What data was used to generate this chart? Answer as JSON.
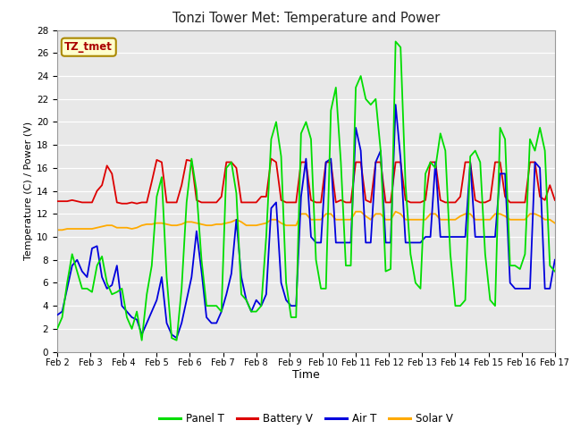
{
  "title": "Tonzi Tower Met: Temperature and Power",
  "xlabel": "Time",
  "ylabel": "Temperature (C) / Power (V)",
  "watermark": "TZ_tmet",
  "ylim": [
    0,
    28
  ],
  "yticks": [
    0,
    2,
    4,
    6,
    8,
    10,
    12,
    14,
    16,
    18,
    20,
    22,
    24,
    26,
    28
  ],
  "xtick_labels": [
    "Feb 2",
    "Feb 3",
    "Feb 4",
    "Feb 5",
    "Feb 6",
    "Feb 7",
    "Feb 8",
    "Feb 9",
    "Feb 10",
    "Feb 11",
    "Feb 12",
    "Feb 13",
    "Feb 14",
    "Feb 15",
    "Feb 16",
    "Feb 17"
  ],
  "legend": [
    {
      "label": "Panel T",
      "color": "#00dd00"
    },
    {
      "label": "Battery V",
      "color": "#dd0000"
    },
    {
      "label": "Air T",
      "color": "#0000dd"
    },
    {
      "label": "Solar V",
      "color": "#ffaa00"
    }
  ],
  "fig_bg_color": "#ffffff",
  "plot_bg_color": "#e8e8e8",
  "grid_color": "#ffffff",
  "panel_t": [
    2.0,
    3.0,
    6.0,
    8.5,
    7.0,
    5.5,
    5.5,
    5.2,
    7.5,
    8.3,
    6.0,
    5.0,
    5.2,
    5.5,
    3.0,
    2.0,
    3.5,
    1.0,
    5.0,
    7.5,
    13.5,
    15.2,
    6.5,
    1.2,
    1.0,
    5.5,
    13.0,
    16.8,
    14.0,
    8.0,
    4.0,
    4.0,
    4.0,
    3.5,
    16.0,
    16.5,
    13.8,
    5.0,
    4.5,
    3.5,
    3.5,
    4.0,
    10.0,
    18.5,
    20.0,
    17.0,
    6.0,
    3.0,
    3.0,
    19.0,
    20.0,
    18.5,
    8.0,
    5.5,
    5.5,
    21.0,
    23.0,
    16.5,
    7.5,
    7.5,
    23.0,
    24.0,
    22.0,
    21.5,
    22.0,
    17.5,
    7.0,
    7.2,
    27.0,
    26.5,
    14.5,
    8.5,
    6.0,
    5.5,
    15.5,
    16.5,
    16.0,
    19.0,
    17.5,
    8.5,
    4.0,
    4.0,
    4.5,
    17.0,
    17.5,
    16.5,
    8.5,
    4.5,
    4.0,
    19.5,
    18.5,
    7.5,
    7.5,
    7.2,
    8.5,
    18.5,
    17.5,
    19.5,
    17.5,
    7.5,
    7.0
  ],
  "battery_v": [
    13.1,
    13.1,
    13.1,
    13.2,
    13.1,
    13.0,
    13.0,
    13.0,
    14.0,
    14.5,
    16.2,
    15.5,
    13.0,
    12.9,
    12.9,
    13.0,
    12.9,
    13.0,
    13.0,
    14.8,
    16.7,
    16.5,
    13.0,
    13.0,
    13.0,
    14.5,
    16.7,
    16.6,
    13.2,
    13.0,
    13.0,
    13.0,
    13.0,
    13.5,
    16.5,
    16.5,
    16.0,
    13.0,
    13.0,
    13.0,
    13.0,
    13.5,
    13.5,
    16.8,
    16.5,
    13.2,
    13.0,
    13.0,
    13.0,
    16.5,
    16.5,
    13.2,
    13.0,
    13.0,
    16.5,
    16.5,
    13.0,
    13.2,
    13.0,
    13.0,
    16.5,
    16.5,
    13.2,
    13.0,
    16.5,
    16.5,
    13.0,
    13.0,
    16.5,
    16.5,
    13.2,
    13.0,
    13.0,
    13.0,
    13.2,
    16.5,
    16.5,
    13.2,
    13.0,
    13.0,
    13.0,
    13.5,
    16.5,
    16.5,
    13.2,
    13.0,
    13.0,
    13.2,
    16.5,
    16.5,
    13.5,
    13.0,
    13.0,
    13.0,
    13.0,
    16.5,
    16.5,
    13.5,
    13.2,
    14.5,
    13.2
  ],
  "air_t": [
    3.2,
    3.5,
    5.5,
    7.5,
    8.0,
    7.0,
    6.5,
    9.0,
    9.2,
    6.5,
    5.5,
    5.8,
    7.5,
    4.0,
    3.5,
    3.0,
    2.8,
    1.5,
    2.5,
    3.5,
    4.5,
    6.5,
    2.5,
    1.5,
    1.2,
    2.5,
    4.5,
    6.5,
    10.5,
    7.0,
    3.0,
    2.5,
    2.5,
    3.5,
    5.0,
    6.8,
    11.5,
    6.5,
    4.5,
    3.5,
    4.5,
    4.0,
    5.0,
    12.5,
    13.0,
    6.0,
    4.5,
    4.0,
    4.0,
    13.5,
    16.8,
    10.0,
    9.5,
    9.5,
    16.5,
    16.8,
    9.5,
    9.5,
    9.5,
    9.5,
    19.5,
    17.5,
    9.5,
    9.5,
    16.5,
    17.5,
    9.5,
    9.5,
    21.5,
    16.8,
    9.5,
    9.5,
    9.5,
    9.5,
    10.0,
    10.0,
    16.5,
    10.0,
    10.0,
    10.0,
    10.0,
    10.0,
    10.0,
    16.5,
    10.0,
    10.0,
    10.0,
    10.0,
    10.0,
    15.5,
    15.5,
    6.0,
    5.5,
    5.5,
    5.5,
    5.5,
    16.5,
    16.0,
    5.5,
    5.5,
    8.0
  ],
  "solar_v": [
    10.6,
    10.6,
    10.7,
    10.7,
    10.7,
    10.7,
    10.7,
    10.7,
    10.8,
    10.9,
    11.0,
    11.0,
    10.8,
    10.8,
    10.8,
    10.7,
    10.8,
    11.0,
    11.1,
    11.1,
    11.2,
    11.2,
    11.1,
    11.0,
    11.0,
    11.1,
    11.3,
    11.3,
    11.2,
    11.1,
    11.0,
    11.0,
    11.1,
    11.1,
    11.2,
    11.3,
    11.5,
    11.3,
    11.0,
    11.0,
    11.0,
    11.1,
    11.2,
    11.5,
    11.5,
    11.2,
    11.0,
    11.0,
    11.0,
    12.0,
    12.0,
    11.5,
    11.5,
    11.5,
    12.0,
    12.0,
    11.5,
    11.5,
    11.5,
    11.5,
    12.2,
    12.2,
    11.8,
    11.5,
    12.0,
    12.0,
    11.5,
    11.5,
    12.2,
    12.0,
    11.5,
    11.5,
    11.5,
    11.5,
    11.5,
    12.0,
    12.0,
    11.5,
    11.5,
    11.5,
    11.5,
    11.8,
    12.0,
    12.0,
    11.5,
    11.5,
    11.5,
    11.5,
    12.0,
    12.0,
    11.8,
    11.5,
    11.5,
    11.5,
    11.5,
    12.0,
    12.0,
    11.8,
    11.5,
    11.5,
    11.2
  ]
}
